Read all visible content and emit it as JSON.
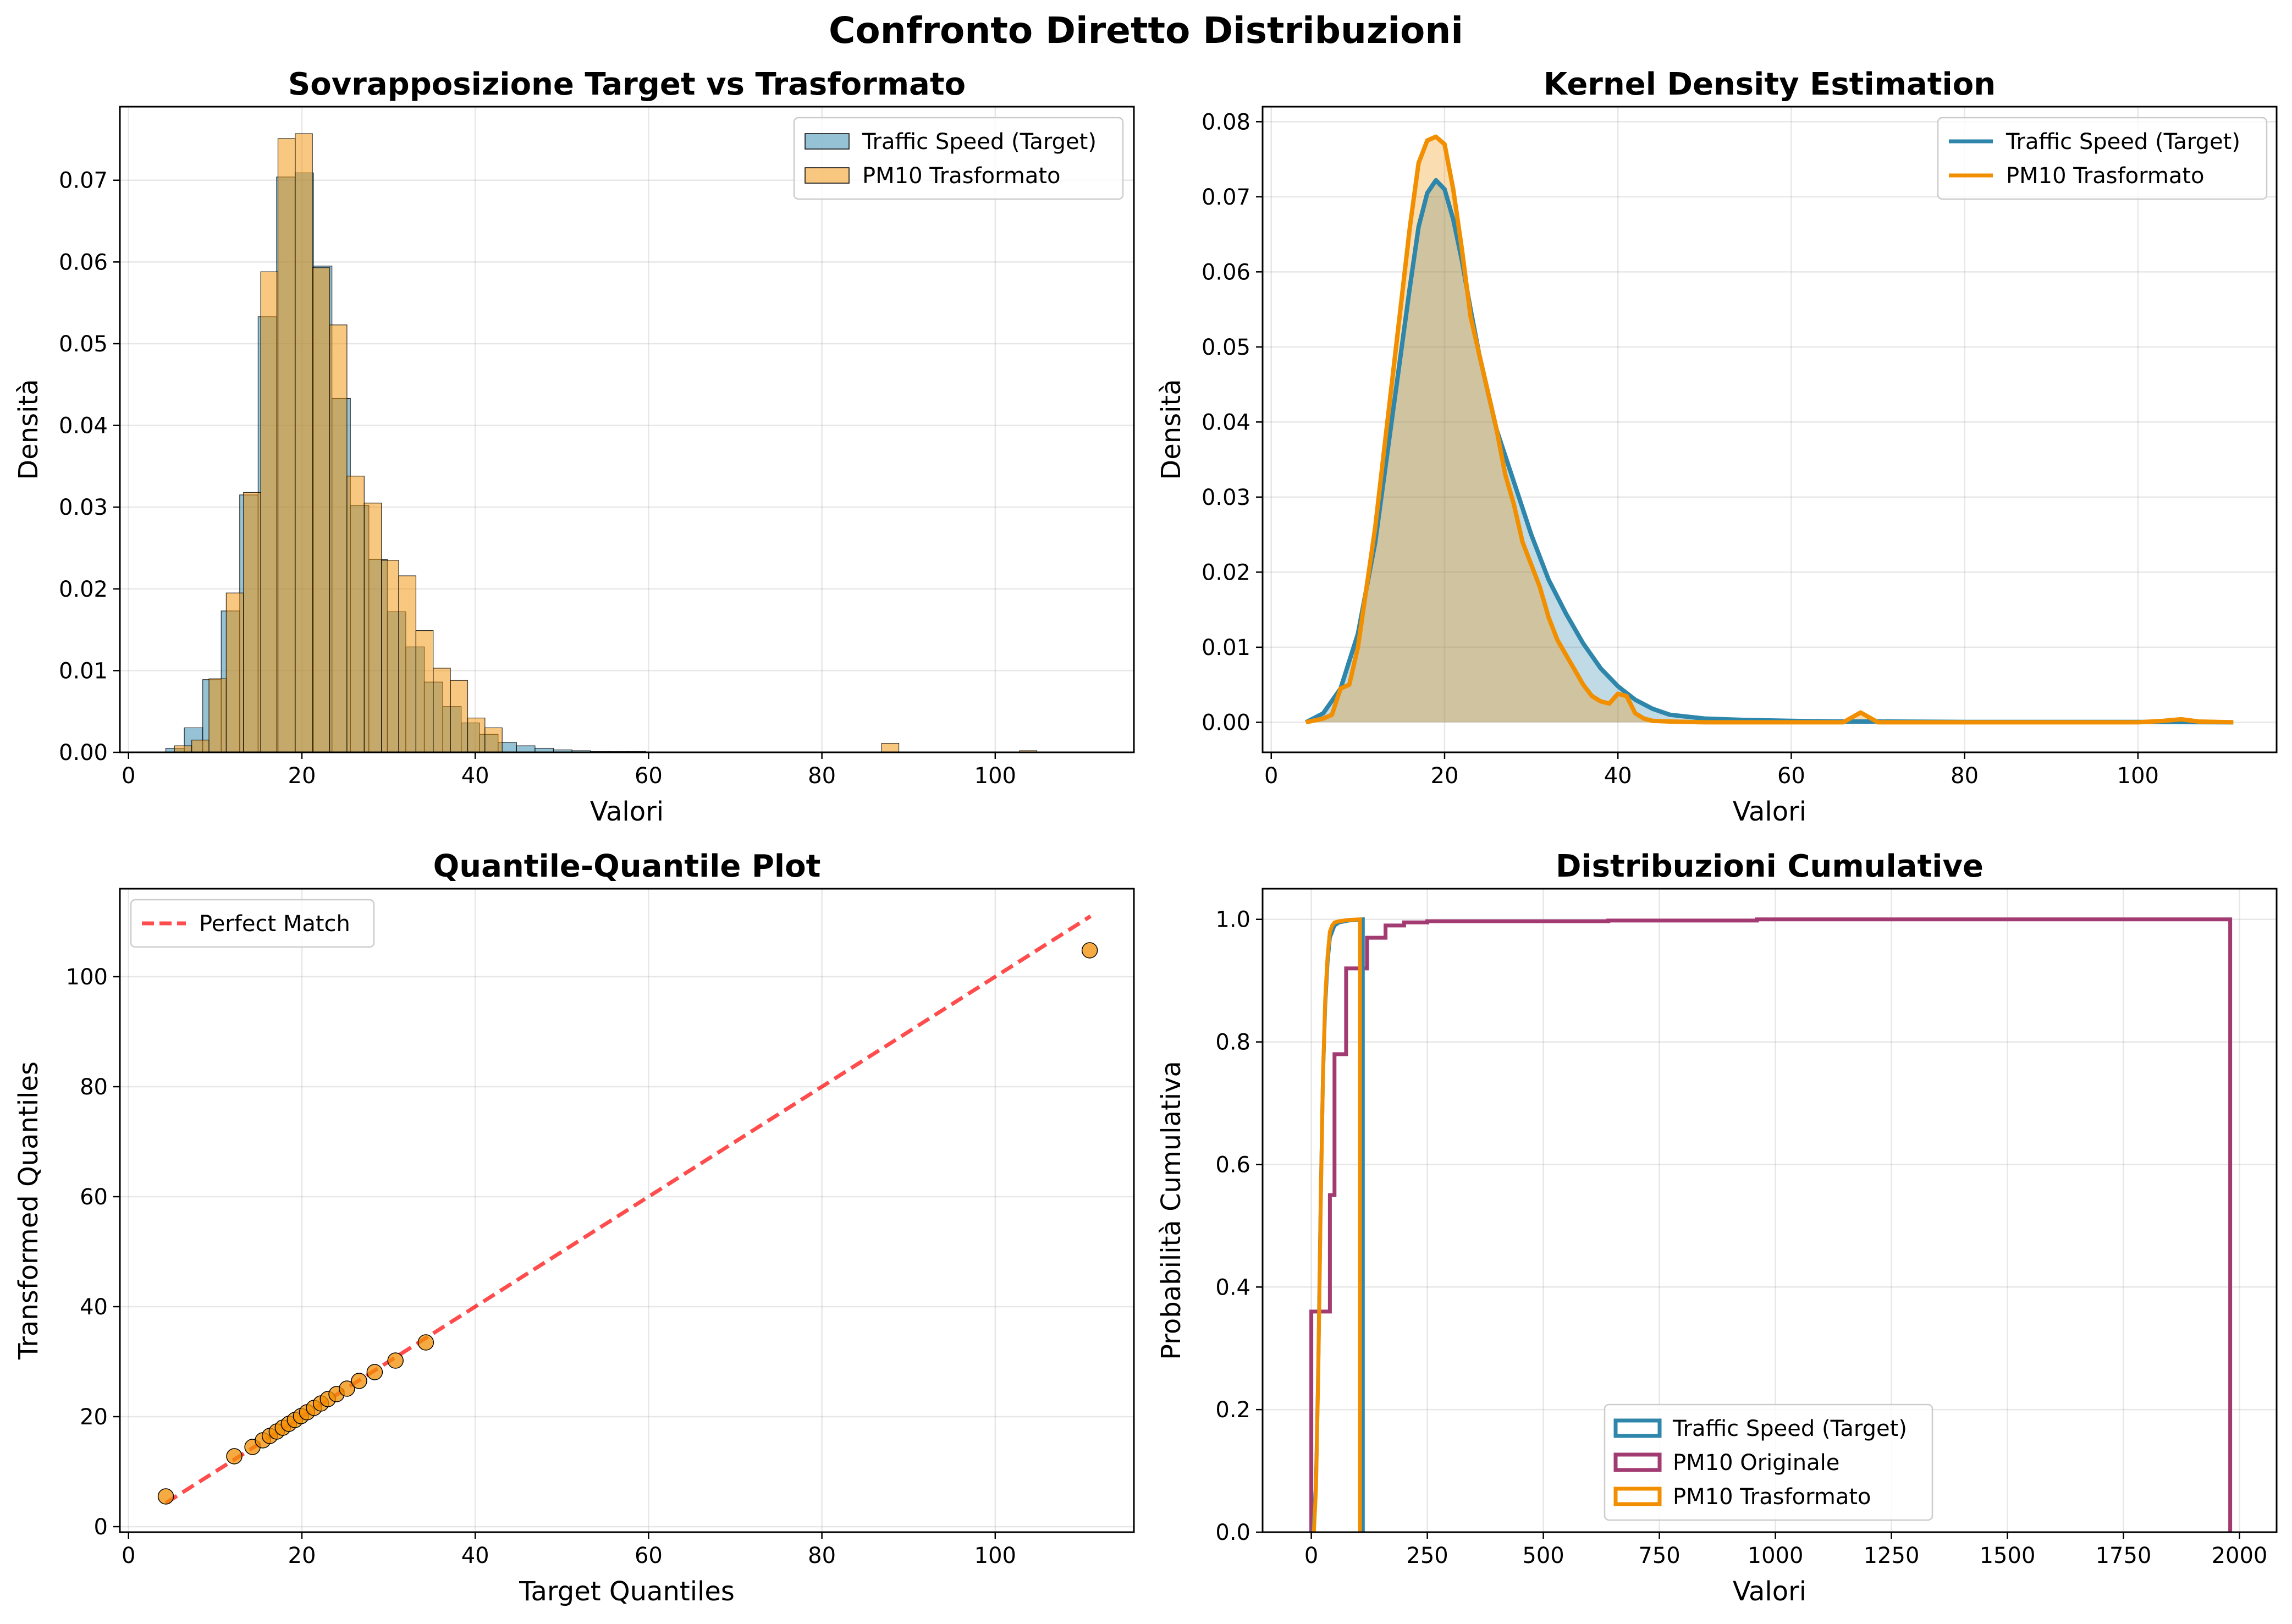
{
  "figure": {
    "suptitle": "Confronto Diretto Distribuzioni"
  },
  "colors": {
    "target": "#2E86AB",
    "transformed": "#F18F01",
    "original": "#A23B72",
    "perfect_match": "#FF0000",
    "qq_points": "#F18F01"
  },
  "chart_data": [
    {
      "id": "hist",
      "type": "bar",
      "title": "Sovrapposizione Target vs Trasformato",
      "xlabel": "Valori",
      "ylabel": "Densità",
      "xlim": [
        -1,
        116
      ],
      "ylim": [
        0,
        0.079
      ],
      "xticks": [
        "0",
        "20",
        "40",
        "60",
        "80",
        "100"
      ],
      "xtick_values": [
        0,
        20,
        40,
        60,
        80,
        100
      ],
      "yticks": [
        "0.00",
        "0.01",
        "0.02",
        "0.03",
        "0.04",
        "0.05",
        "0.06",
        "0.07"
      ],
      "ytick_values": [
        0,
        0.01,
        0.02,
        0.03,
        0.04,
        0.05,
        0.06,
        0.07
      ],
      "grid": true,
      "legend_position": "top-right",
      "series": [
        {
          "name": "Traffic Speed (Target)",
          "color": "#2E86AB",
          "bin_start": 4.3,
          "bin_width": 2.13,
          "values": [
            0.0005,
            0.003,
            0.0089,
            0.0173,
            0.0315,
            0.0533,
            0.0704,
            0.0709,
            0.0595,
            0.0433,
            0.0302,
            0.0236,
            0.0172,
            0.0129,
            0.0086,
            0.0056,
            0.0036,
            0.0022,
            0.0012,
            0.0008,
            0.0005,
            0.0003,
            0.0002,
            0.0001,
            0.0001,
            0.0001,
            5e-05,
            5e-05,
            3e-05,
            3e-05,
            2e-05,
            2e-05,
            2e-05,
            1e-05,
            1e-05,
            1e-05,
            1e-05,
            1e-05,
            1e-05,
            1e-05,
            1e-05,
            1e-05,
            1e-05,
            1e-05,
            1e-05,
            1e-05,
            1e-05,
            1e-05,
            1e-05,
            1e-05
          ]
        },
        {
          "name": "PM10 Trasformato",
          "color": "#F18F01",
          "bin_start": 5.3,
          "bin_width": 1.99,
          "values": [
            0.0008,
            0.0015,
            0.009,
            0.0195,
            0.0318,
            0.0588,
            0.0751,
            0.0757,
            0.0593,
            0.0523,
            0.0338,
            0.0305,
            0.0235,
            0.0216,
            0.0149,
            0.0103,
            0.0088,
            0.0042,
            0.003,
            0,
            0,
            0,
            0,
            0,
            0,
            0,
            0,
            0,
            0,
            0,
            0,
            0,
            0,
            0,
            0,
            0,
            0,
            0,
            0,
            0,
            0,
            0.0011,
            0,
            0,
            0,
            0,
            0,
            0,
            0,
            0.0002
          ]
        }
      ]
    },
    {
      "id": "kde",
      "type": "area",
      "title": "Kernel Density Estimation",
      "xlabel": "Valori",
      "ylabel": "Densità",
      "xlim": [
        -1,
        116
      ],
      "ylim": [
        -0.004,
        0.082
      ],
      "xticks": [
        "0",
        "20",
        "40",
        "60",
        "80",
        "100"
      ],
      "xtick_values": [
        0,
        20,
        40,
        60,
        80,
        100
      ],
      "yticks": [
        "0.00",
        "0.01",
        "0.02",
        "0.03",
        "0.04",
        "0.05",
        "0.06",
        "0.07",
        "0.08"
      ],
      "ytick_values": [
        0,
        0.01,
        0.02,
        0.03,
        0.04,
        0.05,
        0.06,
        0.07,
        0.08
      ],
      "grid": true,
      "legend_position": "top-right",
      "series": [
        {
          "name": "Traffic Speed (Target)",
          "color": "#2E86AB",
          "x": [
            4,
            6,
            8,
            10,
            12,
            14,
            16,
            17,
            18,
            19,
            20,
            21,
            22,
            23,
            24,
            26,
            28,
            30,
            32,
            34,
            36,
            38,
            40,
            42,
            44,
            46,
            50,
            55,
            60,
            65,
            70,
            80,
            90,
            100,
            111
          ],
          "y": [
            0.0,
            0.0012,
            0.0045,
            0.0118,
            0.024,
            0.041,
            0.058,
            0.066,
            0.0705,
            0.0722,
            0.071,
            0.067,
            0.0615,
            0.055,
            0.049,
            0.039,
            0.032,
            0.025,
            0.019,
            0.0145,
            0.0105,
            0.0072,
            0.0048,
            0.003,
            0.0018,
            0.001,
            0.0005,
            0.0003,
            0.0002,
            0.0001,
            0.0001,
            5e-05,
            5e-05,
            5e-05,
            0.0
          ]
        },
        {
          "name": "PM10 Trasformato",
          "color": "#F18F01",
          "x": [
            4,
            6,
            7,
            8,
            9,
            10,
            11,
            12,
            13,
            14,
            15,
            16,
            17,
            18,
            19,
            20,
            21,
            22,
            23,
            24,
            25,
            26,
            27,
            28,
            29,
            30,
            31,
            32,
            33,
            34,
            35,
            36,
            37,
            38,
            39,
            40,
            41,
            42,
            43,
            44,
            46,
            50,
            60,
            66,
            68,
            70,
            80,
            100,
            103,
            105,
            107,
            111
          ],
          "y": [
            0.0,
            0.0005,
            0.001,
            0.0045,
            0.005,
            0.01,
            0.018,
            0.026,
            0.036,
            0.046,
            0.056,
            0.066,
            0.0745,
            0.0775,
            0.078,
            0.077,
            0.071,
            0.063,
            0.054,
            0.049,
            0.044,
            0.039,
            0.033,
            0.029,
            0.024,
            0.021,
            0.018,
            0.014,
            0.011,
            0.009,
            0.007,
            0.005,
            0.0035,
            0.0028,
            0.0025,
            0.0038,
            0.0035,
            0.0012,
            0.0005,
            0.0002,
            0.0001,
            0.0,
            0.0,
            0.0,
            0.0013,
            0.0,
            0.0,
            0.0,
            0.0002,
            0.0004,
            0.0001,
            0.0
          ]
        }
      ]
    },
    {
      "id": "qq",
      "type": "scatter",
      "title": "Quantile-Quantile Plot",
      "xlabel": "Target Quantiles",
      "ylabel": "Transformed Quantiles",
      "xlim": [
        -1,
        116
      ],
      "ylim": [
        -1,
        116
      ],
      "xticks": [
        "0",
        "20",
        "40",
        "60",
        "80",
        "100"
      ],
      "xtick_values": [
        0,
        20,
        40,
        60,
        80,
        100
      ],
      "yticks": [
        "0",
        "20",
        "40",
        "60",
        "80",
        "100"
      ],
      "ytick_values": [
        0,
        20,
        40,
        60,
        80,
        100
      ],
      "grid": true,
      "legend_position": "top-left",
      "reference_line": {
        "name": "Perfect Match",
        "x": [
          4.3,
          111
        ],
        "y": [
          4.3,
          111
        ]
      },
      "points": {
        "x": [
          4.3,
          12.2,
          14.3,
          15.5,
          16.3,
          17.1,
          17.8,
          18.5,
          19.2,
          19.9,
          20.6,
          21.4,
          22.2,
          23.0,
          24.0,
          25.2,
          26.6,
          28.4,
          30.8,
          34.3,
          110.9
        ],
        "y": [
          5.5,
          12.8,
          14.5,
          15.7,
          16.5,
          17.3,
          18.0,
          18.7,
          19.4,
          20.1,
          20.8,
          21.6,
          22.4,
          23.2,
          24.1,
          25.1,
          26.5,
          28.1,
          30.2,
          33.5,
          104.8
        ]
      }
    },
    {
      "id": "cdf",
      "type": "line",
      "title": "Distribuzioni Cumulative",
      "xlabel": "Valori",
      "ylabel": "Probabilità Cumulativa",
      "xlim": [
        -105,
        2080
      ],
      "ylim": [
        0,
        1.05
      ],
      "xticks": [
        "0",
        "250",
        "500",
        "750",
        "1000",
        "1250",
        "1500",
        "1750",
        "2000"
      ],
      "xtick_values": [
        0,
        250,
        500,
        750,
        1000,
        1250,
        1500,
        1750,
        2000
      ],
      "yticks": [
        "0.0",
        "0.2",
        "0.4",
        "0.6",
        "0.8",
        "1.0"
      ],
      "ytick_values": [
        0,
        0.2,
        0.4,
        0.6,
        0.8,
        1.0
      ],
      "grid": true,
      "legend_position": "bottom-center",
      "series": [
        {
          "name": "Traffic Speed (Target)",
          "color": "#2E86AB",
          "x": [
            4.3,
            10,
            15,
            20,
            25,
            30,
            35,
            40,
            50,
            60,
            80,
            111,
            111
          ],
          "y": [
            0.0,
            0.08,
            0.27,
            0.53,
            0.74,
            0.86,
            0.93,
            0.97,
            0.99,
            0.995,
            0.998,
            1.0,
            0.0
          ]
        },
        {
          "name": "PM10 Originale",
          "color": "#A23B72",
          "x": [
            0,
            0,
            40,
            40,
            50,
            50,
            75,
            75,
            120,
            120,
            160,
            160,
            200,
            200,
            250,
            250,
            640,
            640,
            960,
            960,
            1980,
            1980
          ],
          "y": [
            0.0,
            0.36,
            0.36,
            0.55,
            0.55,
            0.78,
            0.78,
            0.92,
            0.92,
            0.97,
            0.97,
            0.99,
            0.99,
            0.995,
            0.995,
            0.997,
            0.997,
            0.998,
            0.998,
            1.0,
            1.0,
            0.0
          ]
        },
        {
          "name": "PM10 Trasformato",
          "color": "#F18F01",
          "x": [
            5.5,
            10,
            15,
            20,
            25,
            30,
            35,
            40,
            45,
            50,
            60,
            80,
            105,
            105
          ],
          "y": [
            0.0,
            0.07,
            0.26,
            0.52,
            0.74,
            0.87,
            0.94,
            0.98,
            0.99,
            0.995,
            0.997,
            0.999,
            1.0,
            0.0
          ]
        }
      ]
    }
  ]
}
